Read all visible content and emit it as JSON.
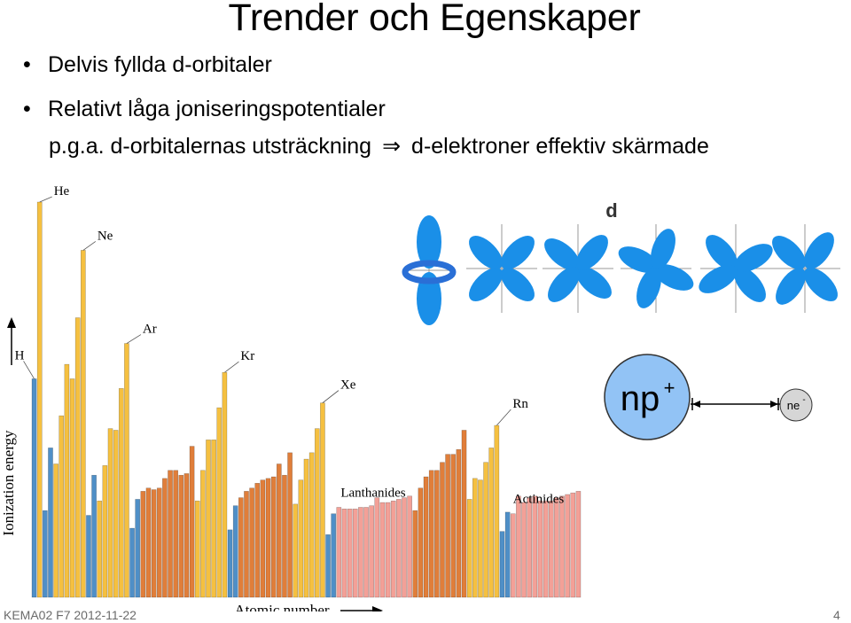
{
  "slide": {
    "title": "Trender och Egenskaper",
    "bullets": [
      "Delvis fyllda d-orbitaler",
      "Relativt låga joniseringspotentialer"
    ],
    "sub_left": "p.g.a. d-orbitalernas utsträckning",
    "sub_arrow": "⇒",
    "sub_right": "d-elektroner effektiv skärmade",
    "footer_left": "KEMA02 F7 2012-11-22",
    "page_number": "4",
    "orbital_label": "d",
    "nucleus_label": "np",
    "nucleus_charge": "+",
    "electron_label": "ne",
    "electron_charge": "-"
  },
  "chart_data": {
    "type": "bar",
    "ylabel": "Ionization energy",
    "xlabel": "Atomic number",
    "element_labels": [
      "He",
      "Ne",
      "H",
      "Ar",
      "Kr",
      "Xe",
      "Rn"
    ],
    "group_labels": [
      "Lanthanides",
      "Actinides"
    ],
    "colors": {
      "s": "#4f8fc7",
      "p": "#f5c040",
      "d": "#e07e3a",
      "f": "#f3a097"
    },
    "blocks": [
      "s",
      "p",
      "s",
      "s",
      "p",
      "p",
      "p",
      "p",
      "p",
      "p",
      "s",
      "s",
      "p",
      "p",
      "p",
      "p",
      "p",
      "p",
      "s",
      "s",
      "d",
      "d",
      "d",
      "d",
      "d",
      "d",
      "d",
      "d",
      "d",
      "d",
      "p",
      "p",
      "p",
      "p",
      "p",
      "p",
      "s",
      "s",
      "d",
      "d",
      "d",
      "d",
      "d",
      "d",
      "d",
      "d",
      "d",
      "d",
      "p",
      "p",
      "p",
      "p",
      "p",
      "p",
      "s",
      "s",
      "f",
      "f",
      "f",
      "f",
      "f",
      "f",
      "f",
      "f",
      "f",
      "f",
      "f",
      "f",
      "f",
      "f",
      "d",
      "d",
      "d",
      "d",
      "d",
      "d",
      "d",
      "d",
      "d",
      "d",
      "p",
      "p",
      "p",
      "p",
      "p",
      "p",
      "s",
      "s",
      "f",
      "f",
      "f",
      "f",
      "f",
      "f",
      "f",
      "f",
      "f",
      "f",
      "f",
      "f",
      "f"
    ],
    "values": [
      13.6,
      24.6,
      5.4,
      9.3,
      8.3,
      11.3,
      14.5,
      13.6,
      17.4,
      21.6,
      5.1,
      7.6,
      6.0,
      8.2,
      10.5,
      10.4,
      13.0,
      15.8,
      4.3,
      6.1,
      6.6,
      6.8,
      6.7,
      6.8,
      7.4,
      7.9,
      7.9,
      7.6,
      7.7,
      9.4,
      6.0,
      7.9,
      9.8,
      9.8,
      11.8,
      14.0,
      4.2,
      5.7,
      6.2,
      6.6,
      6.8,
      7.1,
      7.3,
      7.4,
      7.5,
      8.3,
      7.6,
      9.0,
      5.8,
      7.3,
      8.6,
      9.0,
      10.5,
      12.1,
      3.9,
      5.2,
      5.6,
      5.5,
      5.5,
      5.5,
      5.6,
      5.6,
      5.7,
      6.2,
      5.9,
      5.9,
      6.0,
      6.1,
      6.2,
      6.3,
      5.4,
      6.8,
      7.5,
      7.9,
      7.9,
      8.4,
      8.9,
      8.9,
      9.2,
      10.4,
      6.1,
      7.4,
      7.3,
      8.4,
      9.3,
      10.7,
      4.1,
      5.3,
      5.2,
      6.3,
      5.9,
      6.2,
      6.3,
      6.0,
      6.0,
      6.0,
      6.2,
      6.3,
      6.4,
      6.5,
      6.6
    ]
  }
}
